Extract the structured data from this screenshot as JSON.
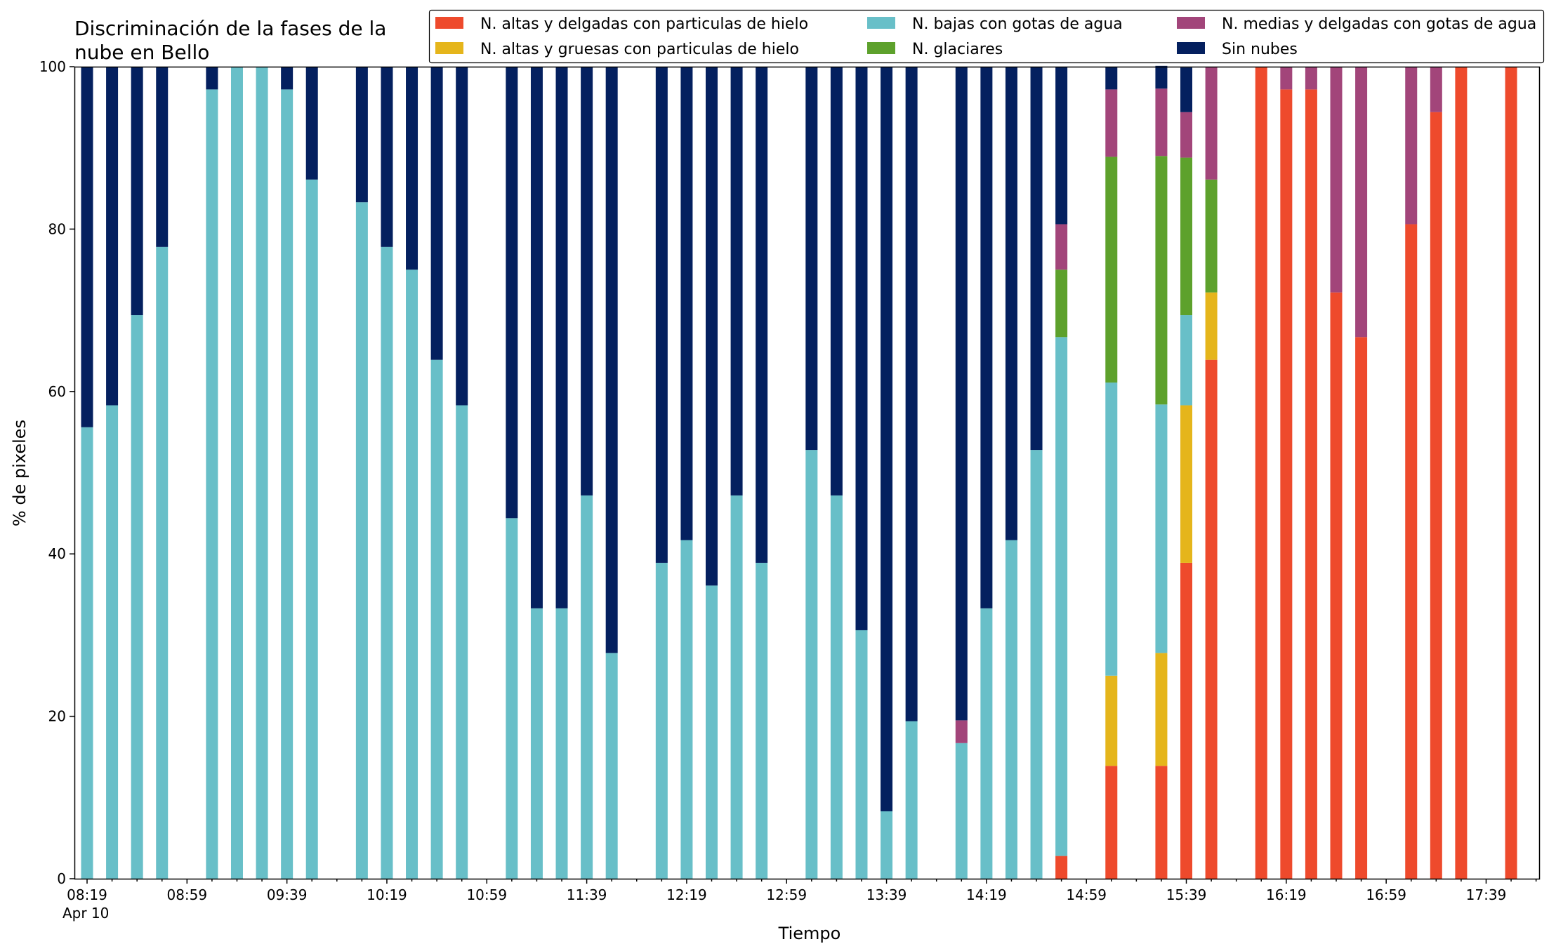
{
  "chart_data": {
    "type": "bar",
    "stacked": true,
    "title_lines": [
      "Discriminación de la fases de la",
      "nube en Bello"
    ],
    "xlabel": "Tiempo",
    "ylabel": "% de pixeles",
    "ylim": [
      0,
      100
    ],
    "yticks": [
      0,
      20,
      40,
      60,
      80,
      100
    ],
    "grid": false,
    "legend_position": "top-right",
    "x_slot_minutes": 10,
    "x_start": "08:19",
    "x_start_date_label": "Apr 10",
    "x_tick_labels": [
      "08:19",
      "08:59",
      "09:39",
      "10:19",
      "10:59",
      "11:39",
      "12:19",
      "12:59",
      "13:39",
      "14:19",
      "14:59",
      "15:39",
      "16:19",
      "16:59",
      "17:39"
    ],
    "x_tick_slots": [
      0,
      4,
      8,
      12,
      16,
      20,
      24,
      28,
      32,
      36,
      40,
      44,
      48,
      52,
      56
    ],
    "bar_slots": [
      0,
      1,
      2,
      3,
      5,
      6,
      7,
      8,
      9,
      11,
      12,
      13,
      14,
      15,
      17,
      18,
      19,
      20,
      21,
      23,
      24,
      25,
      26,
      27,
      29,
      30,
      31,
      32,
      33,
      35,
      36,
      37,
      38,
      39,
      41,
      43,
      44,
      45,
      47,
      48,
      49,
      50,
      51,
      53,
      54,
      55,
      57
    ],
    "series": [
      {
        "name": "N. altas y delgadas con particulas de hielo",
        "color": "#ee4a2c",
        "values": [
          0,
          0,
          0,
          0,
          0,
          0,
          0,
          0,
          0,
          0,
          0,
          0,
          0,
          0,
          0,
          0,
          0,
          0,
          0,
          0,
          0,
          0,
          0,
          0,
          0,
          0,
          0,
          0,
          0,
          0,
          0,
          0,
          0,
          2.8,
          13.9,
          13.9,
          38.9,
          63.9,
          100,
          97.2,
          97.2,
          72.2,
          66.7,
          80.6,
          94.4,
          100,
          100
        ]
      },
      {
        "name": "N. altas y gruesas con particulas de hielo",
        "color": "#e5b51b",
        "values": [
          0,
          0,
          0,
          0,
          0,
          0,
          0,
          0,
          0,
          0,
          0,
          0,
          0,
          0,
          0,
          0,
          0,
          0,
          0,
          0,
          0,
          0,
          0,
          0,
          0,
          0,
          0,
          0,
          0,
          0,
          0,
          0,
          0,
          0,
          11.1,
          13.9,
          19.4,
          8.3,
          0,
          0,
          0,
          0,
          0,
          0,
          0,
          0,
          0
        ]
      },
      {
        "name": "N. bajas con gotas de agua",
        "color": "#68bfc8",
        "values": [
          55.6,
          58.3,
          69.4,
          77.8,
          97.2,
          100,
          100,
          97.2,
          86.1,
          83.3,
          77.8,
          75,
          63.9,
          58.3,
          44.4,
          33.3,
          33.3,
          47.2,
          27.8,
          38.9,
          41.7,
          36.1,
          47.2,
          38.9,
          52.8,
          47.2,
          30.6,
          8.3,
          19.4,
          16.7,
          33.3,
          41.7,
          52.8,
          63.9,
          36.1,
          30.6,
          11.1,
          0,
          0,
          0,
          0,
          0,
          0,
          0,
          0,
          0,
          0
        ]
      },
      {
        "name": "N. glaciares",
        "color": "#5da12c",
        "values": [
          0,
          0,
          0,
          0,
          0,
          0,
          0,
          0,
          0,
          0,
          0,
          0,
          0,
          0,
          0,
          0,
          0,
          0,
          0,
          0,
          0,
          0,
          0,
          0,
          0,
          0,
          0,
          0,
          0,
          0,
          0,
          0,
          0,
          8.3,
          27.8,
          30.6,
          19.4,
          13.9,
          0,
          0,
          0,
          0,
          0,
          0,
          0,
          0,
          0
        ]
      },
      {
        "name": "N. medias y delgadas con gotas de agua",
        "color": "#a2457a",
        "values": [
          0,
          0,
          0,
          0,
          0,
          0,
          0,
          0,
          0,
          0,
          0,
          0,
          0,
          0,
          0,
          0,
          0,
          0,
          0,
          0,
          0,
          0,
          0,
          0,
          0,
          0,
          0,
          0,
          0,
          2.8,
          0,
          0,
          0,
          5.6,
          8.3,
          8.3,
          5.6,
          13.9,
          0,
          2.8,
          2.8,
          27.8,
          33.3,
          19.4,
          5.6,
          0,
          0
        ]
      },
      {
        "name": "Sin nubes",
        "color": "#04205f",
        "values": [
          44.4,
          41.7,
          30.6,
          22.2,
          2.8,
          0,
          0,
          2.8,
          13.9,
          16.7,
          22.2,
          25,
          36.1,
          41.7,
          55.6,
          66.7,
          66.7,
          52.8,
          72.2,
          61.1,
          58.3,
          63.9,
          52.8,
          61.1,
          47.2,
          52.8,
          69.4,
          91.7,
          80.6,
          80.5,
          66.7,
          58.3,
          47.2,
          19.4,
          2.8,
          2.8,
          5.5,
          0,
          0,
          0,
          0,
          0,
          0,
          0,
          0,
          0,
          0
        ]
      }
    ]
  }
}
